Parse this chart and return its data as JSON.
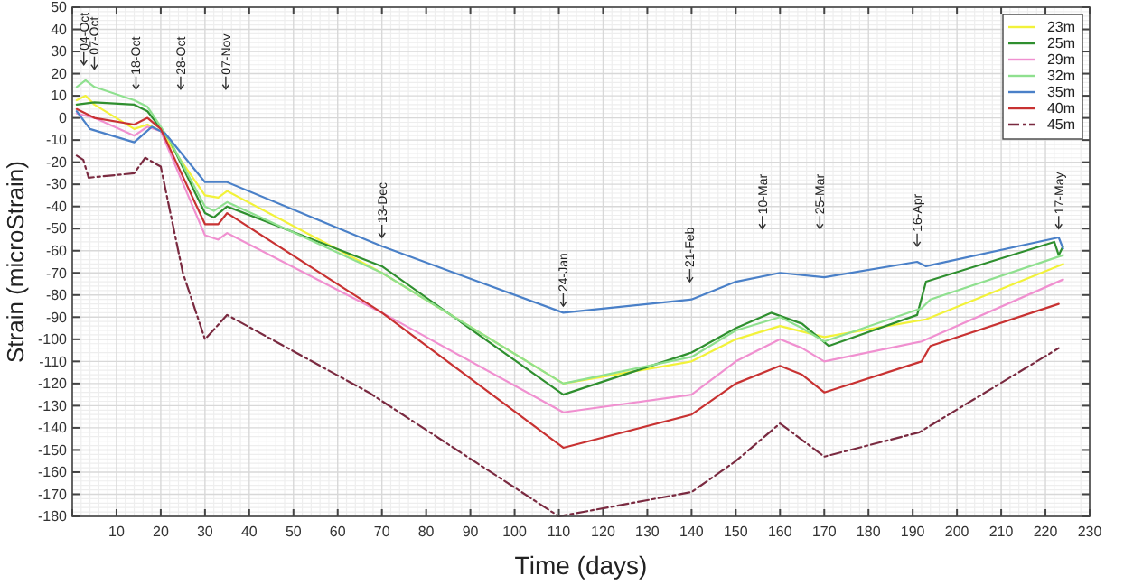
{
  "chart_data": {
    "type": "line",
    "xlabel": "Time (days)",
    "ylabel": "Strain (microStrain)",
    "xlim": [
      0,
      230
    ],
    "xticks": [
      {
        "value": 0,
        "label": null
      },
      10,
      20,
      30,
      40,
      50,
      60,
      70,
      80,
      90,
      100,
      110,
      120,
      130,
      140,
      150,
      160,
      170,
      180,
      190,
      200,
      210,
      220,
      230
    ],
    "ylim": [
      -180,
      50
    ],
    "yticks": [
      -180,
      -170,
      -160,
      -150,
      -140,
      -130,
      -120,
      -110,
      -100,
      -90,
      -80,
      -70,
      -60,
      -50,
      -40,
      -30,
      -20,
      -10,
      0,
      10,
      20,
      30,
      40,
      50
    ],
    "grid": true,
    "legend": "top right",
    "line_style": "solid",
    "marker": "none",
    "series": [
      {
        "name": "23m",
        "color": "#f2f23a",
        "x": [
          1,
          3,
          5,
          14,
          17,
          20,
          30,
          33,
          35,
          70,
          111,
          140,
          150,
          160,
          170,
          193,
          224
        ],
        "values": [
          8,
          10,
          6,
          -5,
          -3,
          -6,
          -35,
          -36,
          -33,
          -70,
          -120,
          -110,
          -100,
          -94,
          -99,
          -91,
          -66
        ]
      },
      {
        "name": "25m",
        "color": "#2f8f2f",
        "x": [
          1,
          5,
          14,
          17,
          22,
          30,
          32,
          35,
          70,
          111,
          140,
          150,
          158,
          165,
          171,
          191,
          193,
          222,
          223,
          224
        ],
        "values": [
          6,
          7,
          6,
          3,
          -10,
          -43,
          -45,
          -40,
          -67,
          -125,
          -106,
          -95,
          -88,
          -93,
          -103,
          -89,
          -74,
          -56,
          -62,
          -58
        ]
      },
      {
        "name": "29m",
        "color": "#f090d0",
        "x": [
          1,
          5,
          14,
          17,
          20,
          30,
          33,
          35,
          70,
          111,
          140,
          150,
          160,
          165,
          170,
          192,
          224
        ],
        "values": [
          2,
          0,
          -8,
          -4,
          -6,
          -53,
          -55,
          -52,
          -88,
          -133,
          -125,
          -110,
          -100,
          -104,
          -110,
          -101,
          -73
        ]
      },
      {
        "name": "32m",
        "color": "#8fe08f",
        "x": [
          1,
          3,
          5,
          14,
          17,
          22,
          30,
          32,
          35,
          70,
          111,
          140,
          150,
          160,
          165,
          170,
          192,
          194,
          224
        ],
        "values": [
          14,
          17,
          14,
          8,
          5,
          -10,
          -40,
          -42,
          -38,
          -70,
          -120,
          -108,
          -96,
          -90,
          -95,
          -101,
          -86,
          -82,
          -62
        ]
      },
      {
        "name": "35m",
        "color": "#4a80c8",
        "x": [
          1,
          4,
          14,
          18,
          21,
          30,
          35,
          70,
          111,
          140,
          150,
          160,
          170,
          191,
          193,
          223,
          224
        ],
        "values": [
          3,
          -5,
          -11,
          -4,
          -7,
          -29,
          -29,
          -58,
          -88,
          -82,
          -74,
          -70,
          -72,
          -65,
          -67,
          -54,
          -59
        ]
      },
      {
        "name": "40m",
        "color": "#c83232",
        "x": [
          1,
          5,
          14,
          17,
          20,
          30,
          33,
          35,
          70,
          111,
          140,
          150,
          160,
          165,
          170,
          192,
          194,
          223
        ],
        "values": [
          4,
          0,
          -3,
          0,
          -5,
          -48,
          -48,
          -43,
          -88,
          -149,
          -134,
          -120,
          -112,
          -116,
          -124,
          -110,
          -103,
          -84
        ]
      },
      {
        "name": "45m",
        "color": "#7a2a40",
        "line_style": "dashdot",
        "x": [
          1,
          2.5,
          3.7,
          14,
          16.5,
          20,
          25,
          30,
          35,
          67,
          110,
          140,
          150,
          160,
          170,
          191.5,
          223
        ],
        "values": [
          -17,
          -19,
          -27,
          -25,
          -18,
          -22,
          -70,
          -100,
          -89,
          -124,
          -180,
          -169,
          -155,
          -138,
          -153,
          -142,
          -104
        ]
      }
    ],
    "annotations": [
      {
        "text": "04-Oct",
        "x": 2.6,
        "y": 24
      },
      {
        "text": "07-Oct",
        "x": 5,
        "y": 22
      },
      {
        "text": "18-Oct",
        "x": 14.4,
        "y": 13
      },
      {
        "text": "28-Oct",
        "x": 24.5,
        "y": 13
      },
      {
        "text": "07-Nov",
        "x": 34.7,
        "y": 13
      },
      {
        "text": "13-Dec",
        "x": 70,
        "y": -54
      },
      {
        "text": "24-Jan",
        "x": 111,
        "y": -85
      },
      {
        "text": "21-Feb",
        "x": 139.6,
        "y": -74
      },
      {
        "text": "10-Mar",
        "x": 156,
        "y": -50
      },
      {
        "text": "25-Mar",
        "x": 169,
        "y": -50
      },
      {
        "text": "16-Apr",
        "x": 191,
        "y": -58
      },
      {
        "text": "17-May",
        "x": 223,
        "y": -50
      }
    ]
  }
}
